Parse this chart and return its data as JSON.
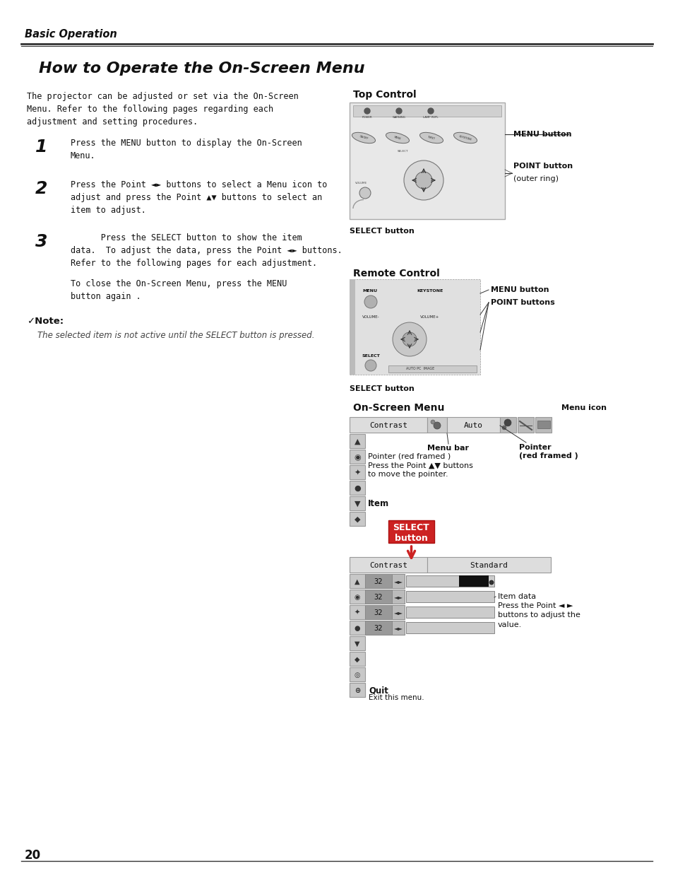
{
  "bg_color": "#ffffff",
  "page_width": 9.54,
  "page_height": 12.35,
  "header_text": "Basic Operation",
  "title": "How to Operate the On-Screen Menu",
  "intro_text": "The projector can be adjusted or set via the On-Screen\nMenu. Refer to the following pages regarding each\nadjustment and setting procedures.",
  "step1_num": "1",
  "step1_text": "Press the MENU button to display the On-Screen\nMenu.",
  "step2_num": "2",
  "step2_text": "Press the Point ◄► buttons to select a Menu icon to\nadjust and press the Point ▲▼ buttons to select an\nitem to adjust.",
  "step3_num": "3",
  "step3_text": "      Press the SELECT button to show the item\ndata.  To adjust the data, press the Point ◄► buttons.\nRefer to the following pages for each adjustment.",
  "close_text": "To close the On-Screen Menu, press the MENU\nbutton again .",
  "note_head": "✓Note:",
  "note_text": "The selected item is not active until the SELECT button is pressed.",
  "top_control_label": "Top Control",
  "menu_btn_label": "MENU button",
  "point_btn_label": "POINT button",
  "point_btn_sub": "(outer ring)",
  "select_btn_label": "SELECT button",
  "remote_label": "Remote Control",
  "remote_menu_label": "MENU button",
  "remote_point_label": "POINT buttons",
  "remote_select_label": "SELECT button",
  "onscreen_label": "On-Screen Menu",
  "menu_icon_label": "Menu icon",
  "menu_bar_label": "Menu bar",
  "pointer_label": "Pointer\n(red framed )",
  "pointer_red_label": "Pointer (red framed )\nPress the Point ▲▼ buttons\nto move the pointer.",
  "item_label": "Item",
  "select_btn_box": "SELECT\nbutton",
  "item_data_label": "Item data\nPress the Point ◄ ►\nbuttons to adjust the\nvalue.",
  "quit_label": "Quit",
  "quit_sub": "Exit this menu.",
  "contrast_text": "Contrast",
  "auto_text": "Auto",
  "standard_text": "Standard",
  "page_num": "20"
}
